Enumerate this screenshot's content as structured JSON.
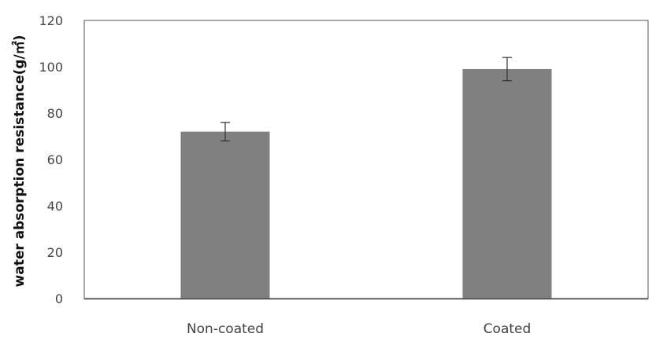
{
  "chart_data": {
    "type": "bar",
    "title": "",
    "xlabel": "",
    "ylabel": "water absorption resistance(g/㎡)",
    "categories": [
      "Non-coated",
      "Coated"
    ],
    "values": [
      72,
      99
    ],
    "error": [
      4,
      5
    ],
    "ylim": [
      0,
      120
    ],
    "yticks": [
      0,
      20,
      40,
      60,
      80,
      100,
      120
    ],
    "grid": false,
    "legend": "none",
    "colors": {
      "bar": "#808080",
      "axis": "#444444",
      "error_bar": "#333333"
    }
  }
}
